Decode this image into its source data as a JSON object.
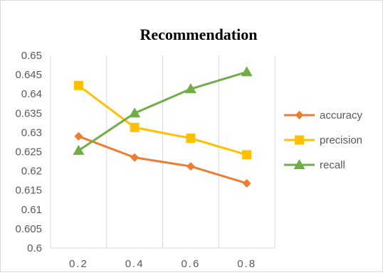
{
  "chart_data": {
    "type": "line",
    "title": "Recommendation",
    "xlabel": "",
    "ylabel": "",
    "categories": [
      "0.2",
      "0.4",
      "0.6",
      "0.8"
    ],
    "y_ticks": [
      "0.6",
      "0.605",
      "0.61",
      "0.615",
      "0.62",
      "0.625",
      "0.63",
      "0.635",
      "0.64",
      "0.645",
      "0.65"
    ],
    "ylim": [
      0.6,
      0.65
    ],
    "grid": "vertical",
    "legend_position": "right",
    "series": [
      {
        "name": "accuracy",
        "values": [
          0.629,
          0.6235,
          0.6212,
          0.6168
        ],
        "color": "#ED7D31",
        "marker": "diamond"
      },
      {
        "name": "precision",
        "values": [
          0.6422,
          0.6313,
          0.6285,
          0.6242
        ],
        "color": "#FFC000",
        "marker": "square"
      },
      {
        "name": "recall",
        "values": [
          0.6253,
          0.635,
          0.6413,
          0.6457
        ],
        "color": "#70AD47",
        "marker": "triangle"
      }
    ]
  }
}
